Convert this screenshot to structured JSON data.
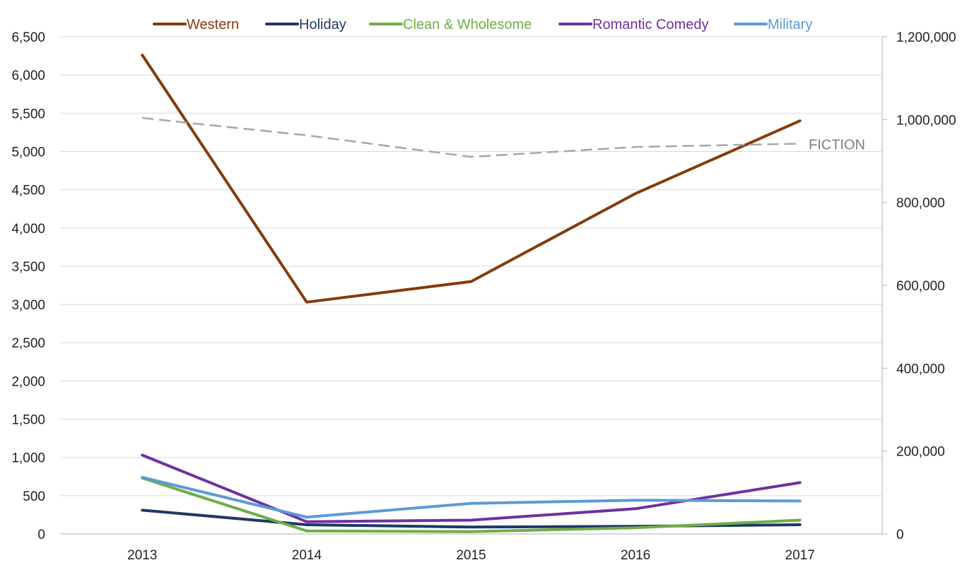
{
  "chart_data": {
    "type": "line",
    "categories": [
      "2013",
      "2014",
      "2015",
      "2016",
      "2017"
    ],
    "series": [
      {
        "name": "Western",
        "axis": "left",
        "color": "#843C0C",
        "values": [
          6260,
          3030,
          3300,
          4450,
          5400
        ]
      },
      {
        "name": "Holiday",
        "axis": "left",
        "color": "#1F3864",
        "values": [
          310,
          120,
          90,
          100,
          120
        ]
      },
      {
        "name": "Clean & Wholesome",
        "axis": "left",
        "color": "#70AD47",
        "values": [
          730,
          40,
          30,
          80,
          180
        ]
      },
      {
        "name": "Romantic Comedy",
        "axis": "left",
        "color": "#7030A0",
        "values": [
          1030,
          160,
          180,
          330,
          670
        ]
      },
      {
        "name": "Military",
        "axis": "left",
        "color": "#5B9BD5",
        "values": [
          740,
          220,
          400,
          440,
          430
        ]
      },
      {
        "name": "FICTION",
        "axis": "right",
        "color": "#A6A6A6",
        "dashed": true,
        "values": [
          1004000,
          962000,
          910000,
          934000,
          942000
        ]
      }
    ],
    "y_left": {
      "range": [
        0,
        6500
      ],
      "ticks": [
        0,
        500,
        1000,
        1500,
        2000,
        2500,
        3000,
        3500,
        4000,
        4500,
        5000,
        5500,
        6000,
        6500
      ],
      "tick_labels": [
        "0",
        "500",
        "1,000",
        "1,500",
        "2,000",
        "2,500",
        "3,000",
        "3,500",
        "4,000",
        "4,500",
        "5,000",
        "5,500",
        "6,000",
        "6,500"
      ]
    },
    "y_right": {
      "range": [
        0,
        1200000
      ],
      "ticks": [
        0,
        200000,
        400000,
        600000,
        800000,
        1000000,
        1200000
      ],
      "tick_labels": [
        "0",
        "200,000",
        "400,000",
        "600,000",
        "800,000",
        "1,000,000",
        "1,200,000"
      ]
    },
    "legend": {
      "placement": "top",
      "entries": [
        "Western",
        "Holiday",
        "Clean & Wholesome",
        "Romantic Comedy",
        "Military"
      ]
    },
    "annotations": [
      {
        "text": "FICTION",
        "series": "FICTION"
      }
    ],
    "grid": true,
    "title": "",
    "xlabel": "",
    "ylabel": ""
  }
}
